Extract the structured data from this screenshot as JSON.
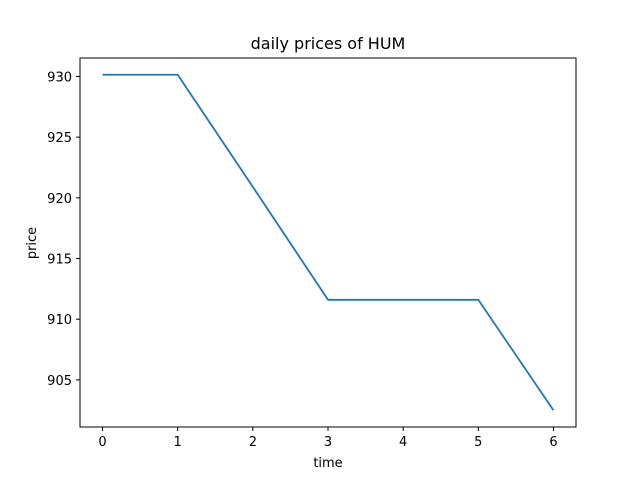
{
  "chart_data": {
    "type": "line",
    "title": "daily prices of HUM",
    "xlabel": "time",
    "ylabel": "price",
    "x": [
      0,
      1,
      2,
      3,
      4,
      5,
      6
    ],
    "series": [
      {
        "values": [
          930.14,
          930.14,
          920.9,
          911.6,
          911.6,
          911.6,
          902.5
        ]
      }
    ],
    "xticks": [
      0,
      1,
      2,
      3,
      4,
      5,
      6
    ],
    "yticks": [
      905,
      910,
      915,
      920,
      925,
      930
    ],
    "xlim": [
      -0.3,
      6.3
    ],
    "ylim": [
      901.12,
      931.52
    ],
    "grid": false,
    "legend": "none",
    "colors": {
      "line": "#1f77b4",
      "axes": "#000000",
      "background": "#ffffff"
    }
  }
}
